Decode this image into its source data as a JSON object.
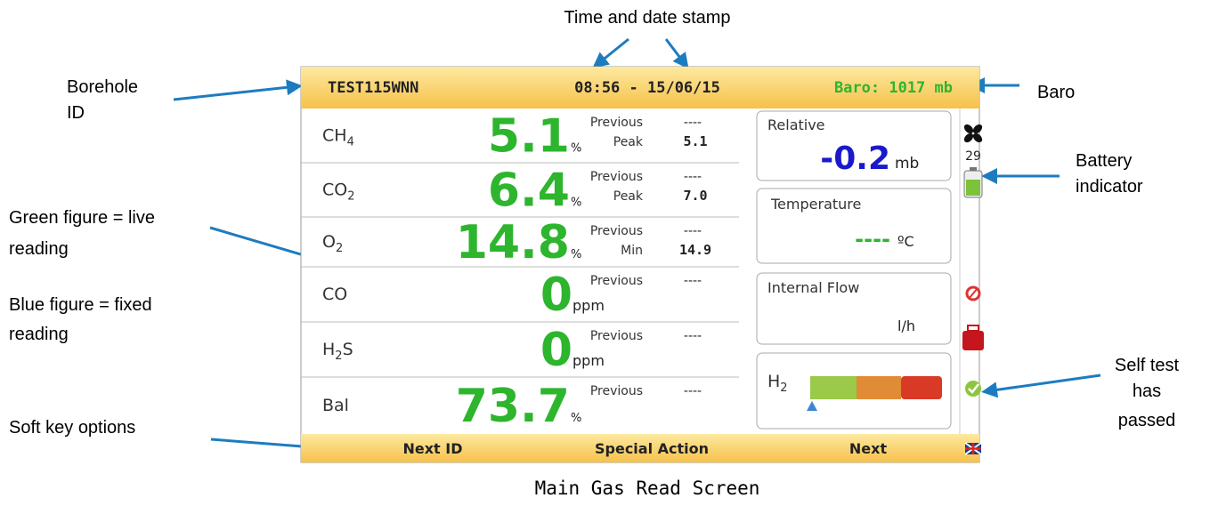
{
  "annotations": {
    "time_date": "Time and date stamp",
    "borehole_id": [
      "Borehole",
      "ID"
    ],
    "baro": "Baro",
    "battery": [
      "Battery",
      "indicator"
    ],
    "green_figure": [
      "Green figure = live",
      "reading"
    ],
    "blue_figure": [
      "Blue figure = fixed",
      "reading"
    ],
    "soft_keys": "Soft key options",
    "self_test": [
      "Self  test",
      "has",
      "passed"
    ]
  },
  "header": {
    "borehole_id": "TEST115WNN",
    "time_date": "08:56 - 15/06/15",
    "baro": "Baro: 1017 mb"
  },
  "gases": [
    {
      "name": {
        "base": "CH",
        "sub": "4"
      },
      "value": "5.1",
      "unit": "%",
      "ref_labels": [
        "Previous",
        "Peak"
      ],
      "ref_values": [
        "----",
        "5.1"
      ]
    },
    {
      "name": {
        "base": "CO",
        "sub": "2"
      },
      "value": "6.4",
      "unit": "%",
      "ref_labels": [
        "Previous",
        "Peak"
      ],
      "ref_values": [
        "----",
        "7.0"
      ]
    },
    {
      "name": {
        "base": "O",
        "sub": "2"
      },
      "value": "14.8",
      "unit": "%",
      "ref_labels": [
        "Previous",
        "Min"
      ],
      "ref_values": [
        "----",
        "14.9"
      ]
    },
    {
      "name": {
        "base": "CO"
      },
      "value": "0",
      "unit": "ppm",
      "ref_labels": [
        "Previous"
      ],
      "ref_values": [
        "----"
      ]
    },
    {
      "name": {
        "base": "H",
        "sub": "2",
        "tail": "S"
      },
      "value": "0",
      "unit": "ppm",
      "ref_labels": [
        "Previous"
      ],
      "ref_values": [
        "----"
      ]
    },
    {
      "name": {
        "base": "Bal"
      },
      "value": "73.7",
      "unit": "%",
      "ref_labels": [
        "Previous"
      ],
      "ref_values": [
        "----"
      ]
    }
  ],
  "panels": {
    "relative": {
      "label": "Relative",
      "value": "-0.2",
      "unit": "mb"
    },
    "temperature": {
      "label": "Temperature",
      "value": "----",
      "unit": "ºC"
    },
    "internal_flow": {
      "label": "Internal Flow",
      "unit": "l/h"
    },
    "h2": {
      "base": "H",
      "sub": "2"
    }
  },
  "status": {
    "fan_speed": "29"
  },
  "softkeys": [
    "Next ID",
    "Special Action",
    "Next"
  ],
  "caption": "Main Gas Read Screen"
}
